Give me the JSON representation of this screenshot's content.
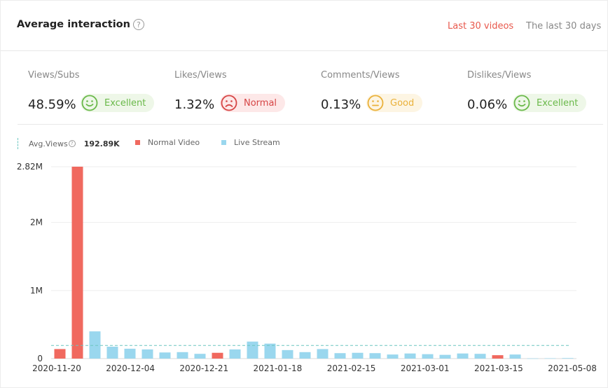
{
  "header": {
    "title": "Average interaction",
    "tabs": [
      {
        "label": "Last 30 videos",
        "active": true
      },
      {
        "label": "The last 30 days",
        "active": false
      }
    ]
  },
  "metrics": [
    {
      "label": "Views/Subs",
      "value": "48.59%",
      "rating": "Excellent",
      "face": "smile-icon"
    },
    {
      "label": "Likes/Views",
      "value": "1.32%",
      "rating": "Normal",
      "face": "frown-icon"
    },
    {
      "label": "Comments/Views",
      "value": "0.13%",
      "rating": "Good",
      "face": "neutral-icon"
    },
    {
      "label": "Dislikes/Views",
      "value": "0.06%",
      "rating": "Excellent",
      "face": "smile-icon"
    }
  ],
  "legend": {
    "avg_label": "Avg.Views",
    "avg_value": "192.89K",
    "normal_label": "Normal Video",
    "live_label": "Live Stream"
  },
  "colors": {
    "accent": "#e8594d",
    "normal_video": "#f0695f",
    "live_stream": "#9ad7ee",
    "avg_line": "#6cc6c0",
    "excellent": "#6ab94a",
    "normal": "#d64545",
    "good": "#eab13a"
  },
  "chart_data": {
    "type": "bar",
    "y_tick_labels": [
      "0",
      "1M",
      "2M",
      "2.82M"
    ],
    "y_ticks": [
      0,
      1000000,
      2000000,
      2820000
    ],
    "ylim": [
      0,
      2820000
    ],
    "x_tick_labels": [
      "2020-11-20",
      "2020-12-04",
      "2020-12-21",
      "2021-01-18",
      "2021-02-15",
      "2021-03-01",
      "2021-03-15",
      "2021-05-08"
    ],
    "avg_views": 192890,
    "series": [
      {
        "name": "Normal Video",
        "color": "#f0695f"
      },
      {
        "name": "Live Stream",
        "color": "#9ad7ee"
      }
    ],
    "bars": [
      {
        "type": "Normal Video",
        "value": 140000
      },
      {
        "type": "Normal Video",
        "value": 2820000
      },
      {
        "type": "Live Stream",
        "value": 400000
      },
      {
        "type": "Live Stream",
        "value": 175000
      },
      {
        "type": "Live Stream",
        "value": 145000
      },
      {
        "type": "Live Stream",
        "value": 135000
      },
      {
        "type": "Live Stream",
        "value": 90000
      },
      {
        "type": "Live Stream",
        "value": 95000
      },
      {
        "type": "Live Stream",
        "value": 70000
      },
      {
        "type": "Normal Video",
        "value": 85000
      },
      {
        "type": "Live Stream",
        "value": 135000
      },
      {
        "type": "Live Stream",
        "value": 250000
      },
      {
        "type": "Live Stream",
        "value": 220000
      },
      {
        "type": "Live Stream",
        "value": 125000
      },
      {
        "type": "Live Stream",
        "value": 95000
      },
      {
        "type": "Live Stream",
        "value": 140000
      },
      {
        "type": "Live Stream",
        "value": 80000
      },
      {
        "type": "Live Stream",
        "value": 85000
      },
      {
        "type": "Live Stream",
        "value": 80000
      },
      {
        "type": "Live Stream",
        "value": 60000
      },
      {
        "type": "Live Stream",
        "value": 75000
      },
      {
        "type": "Live Stream",
        "value": 65000
      },
      {
        "type": "Live Stream",
        "value": 55000
      },
      {
        "type": "Live Stream",
        "value": 75000
      },
      {
        "type": "Live Stream",
        "value": 70000
      },
      {
        "type": "Normal Video",
        "value": 50000
      },
      {
        "type": "Live Stream",
        "value": 60000
      },
      {
        "type": "Live Stream",
        "value": 3000
      },
      {
        "type": "Live Stream",
        "value": 5000
      },
      {
        "type": "Live Stream",
        "value": 8000
      }
    ]
  }
}
